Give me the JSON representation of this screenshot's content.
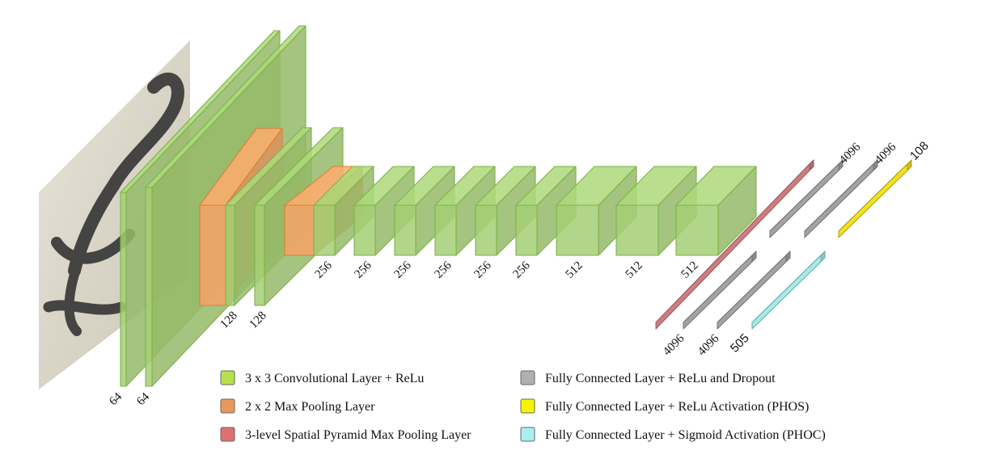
{
  "colors": {
    "conv": "#a5cf74",
    "pool": "#f6a368",
    "spp": "#d07d80",
    "fc": "#a3a3a3",
    "phos": "#f2e21e",
    "phoc": "#a3ecec"
  },
  "input_image": {
    "name": "handwritten-word-image"
  },
  "layer_labels": {
    "conv1": "64",
    "conv2": "64",
    "conv3": "128",
    "conv4": "128",
    "conv5": "256",
    "conv6": "256",
    "conv7": "256",
    "conv8": "256",
    "conv9": "256",
    "conv10": "256",
    "conv11": "512",
    "conv12": "512",
    "conv13": "512"
  },
  "fc_labels": {
    "top1": "4096",
    "top2": "4096",
    "top3": "108",
    "bottom1": "4096",
    "bottom2": "4096",
    "bottom3": "505"
  },
  "legend": [
    {
      "swatch": "#b7e04c",
      "label": "3 x 3 Convolutional Layer + ReLu"
    },
    {
      "swatch": "#e9975a",
      "label": "2 x 2 Max Pooling Layer"
    },
    {
      "swatch": "#e07070",
      "label": "3-level Spatial Pyramid Max Pooling Layer"
    },
    {
      "swatch": "#b0b0b0",
      "label": "Fully Connected Layer + ReLu and Dropout"
    },
    {
      "swatch": "#f5f500",
      "label": "Fully Connected Layer + ReLu Activation (PHOS)"
    },
    {
      "swatch": "#a6f0f0",
      "label": "Fully Connected Layer + Sigmoid Activation (PHOC)"
    }
  ]
}
